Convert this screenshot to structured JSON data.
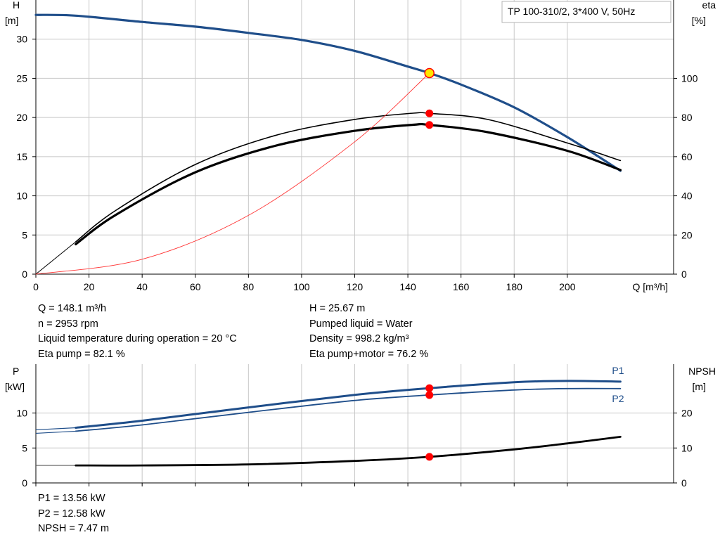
{
  "colors": {
    "head": "#1f4e8a",
    "efficiency": "#000000",
    "hydraulic": "#ff3333",
    "power": "#1f4e8a",
    "npsh": "#000000",
    "grid": "#c8c8c8",
    "point": "#ff0000",
    "duty_fill": "#ffe600"
  },
  "legend_box": {
    "label": "TP 100-310/2, 3*400 V, 50Hz"
  },
  "info_upper": {
    "left": [
      "Q = 148.1 m³/h",
      "n = 2953 rpm",
      "Liquid temperature during operation = 20 °C",
      "Eta pump = 82.1 %"
    ],
    "right": [
      "H = 25.67 m",
      "Pumped liquid = Water",
      "Density = 998.2 kg/m³",
      "Eta pump+motor = 76.2 %"
    ]
  },
  "info_lower": [
    "P1 = 13.56 kW",
    "P2 = 12.58 kW",
    "NPSH = 7.47 m"
  ],
  "chart_data": [
    {
      "type": "line",
      "title": "TP 100-310/2, 3*400 V, 50Hz",
      "xlabel": "Q [m³/h]",
      "ylabel_left": [
        "H",
        "[m]"
      ],
      "ylabel_right": [
        "eta",
        "[%]"
      ],
      "xlim": [
        0,
        240
      ],
      "ylim_left": [
        0,
        35
      ],
      "ylim_right": [
        0,
        140
      ],
      "grid": true,
      "x_ticks": [
        0,
        20,
        40,
        60,
        80,
        100,
        120,
        140,
        160,
        180,
        200
      ],
      "y_ticks_left": [
        0,
        5,
        10,
        15,
        20,
        25,
        30
      ],
      "y_ticks_right": [
        0,
        20,
        40,
        60,
        80,
        100
      ],
      "series": [
        {
          "axis": "left",
          "style": "head",
          "x": [
            0,
            15,
            40,
            60,
            80,
            100,
            120,
            140,
            148.1,
            160,
            180,
            200,
            220
          ],
          "y": [
            33.1,
            33.0,
            32.2,
            31.6,
            30.8,
            29.9,
            28.5,
            26.5,
            25.67,
            24.2,
            21.3,
            17.5,
            13.2
          ]
        },
        {
          "axis": "right",
          "style": "eta_pump",
          "x": [
            15,
            30,
            60,
            90,
            120,
            142,
            148.1,
            170,
            200,
            220
          ],
          "y": [
            16.5,
            32.5,
            56,
            70.8,
            79,
            82.2,
            82.1,
            79,
            67,
            58
          ]
        },
        {
          "axis": "right",
          "style": "eta_total",
          "x": [
            15,
            30,
            60,
            90,
            120,
            142,
            148.1,
            170,
            200,
            220
          ],
          "y": [
            15.3,
            30.2,
            52,
            65.5,
            73.2,
            76.3,
            76.2,
            72.5,
            63,
            53.2
          ]
        },
        {
          "axis": "left",
          "style": "system",
          "x": [
            0,
            40,
            80,
            120,
            148.1
          ],
          "y": [
            0,
            1.9,
            7.5,
            16.9,
            25.67
          ]
        }
      ],
      "operating_points": [
        {
          "axis": "left",
          "x": 148.1,
          "y": 25.67,
          "duty": true
        },
        {
          "axis": "right",
          "x": 148.1,
          "y": 82.1
        },
        {
          "axis": "right",
          "x": 148.1,
          "y": 76.2
        }
      ]
    },
    {
      "type": "line",
      "ylabel_left": [
        "P",
        "[kW]"
      ],
      "ylabel_right": [
        "NPSH",
        "[m]"
      ],
      "xlim": [
        0,
        240
      ],
      "ylim_left": [
        0,
        17
      ],
      "ylim_right": [
        0,
        34
      ],
      "grid": true,
      "x_ticks": [
        0,
        20,
        40,
        60,
        80,
        100,
        120,
        140,
        160,
        180,
        200
      ],
      "y_ticks_left": [
        0,
        5,
        10
      ],
      "y_ticks_right": [
        0,
        10,
        20
      ],
      "series": [
        {
          "name": "P1",
          "axis": "left",
          "style": "p1",
          "x": [
            15,
            40,
            80,
            120,
            148.1,
            180,
            200,
            220
          ],
          "y": [
            7.9,
            8.9,
            10.8,
            12.6,
            13.56,
            14.4,
            14.6,
            14.5
          ]
        },
        {
          "name": "P2",
          "axis": "left",
          "style": "p2",
          "x": [
            15,
            40,
            80,
            120,
            148.1,
            180,
            200,
            220
          ],
          "y": [
            7.4,
            8.3,
            10.1,
            11.8,
            12.58,
            13.3,
            13.5,
            13.5
          ]
        },
        {
          "axis": "right",
          "style": "npsh",
          "x": [
            15,
            40,
            80,
            120,
            148.1,
            180,
            200,
            220
          ],
          "y": [
            5.0,
            5.0,
            5.3,
            6.3,
            7.47,
            9.6,
            11.3,
            13.2
          ]
        }
      ],
      "operating_points": [
        {
          "axis": "left",
          "x": 148.1,
          "y": 13.56
        },
        {
          "axis": "left",
          "x": 148.1,
          "y": 12.58
        },
        {
          "axis": "right",
          "x": 148.1,
          "y": 7.47
        }
      ]
    }
  ]
}
